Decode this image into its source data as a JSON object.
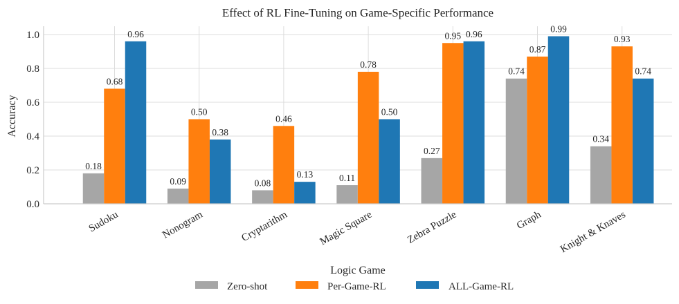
{
  "chart_data": {
    "type": "bar",
    "title": "Effect of RL Fine-Tuning on Game-Specific Performance",
    "xlabel": "",
    "ylabel": "Accuracy",
    "ylim": [
      0,
      1.05
    ],
    "yticks": [
      0.0,
      0.2,
      0.4,
      0.6,
      0.8,
      1.0
    ],
    "ytick_labels": [
      "0.0",
      "0.2",
      "0.4",
      "0.6",
      "0.8",
      "1.0"
    ],
    "grid": true,
    "categories": [
      "Sudoku",
      "Nonogram",
      "Cryptarithm",
      "Magic Square",
      "Zebra Puzzle",
      "Graph",
      "Knight & Knaves"
    ],
    "series": [
      {
        "name": "Zero-shot",
        "color": "#a6a6a6",
        "values": [
          0.18,
          0.09,
          0.08,
          0.11,
          0.27,
          0.74,
          0.34
        ]
      },
      {
        "name": "Per-Game-RL",
        "color": "#ff7f0e",
        "values": [
          0.68,
          0.5,
          0.46,
          0.78,
          0.95,
          0.87,
          0.93
        ]
      },
      {
        "name": "ALL-Game-RL",
        "color": "#1f77b4",
        "values": [
          0.96,
          0.38,
          0.13,
          0.5,
          0.96,
          0.99,
          0.74
        ]
      }
    ],
    "value_labels": true,
    "value_format_decimals": 2,
    "legend": {
      "title": "Logic Game",
      "placement": "bottom-center",
      "entries": [
        "Zero-shot",
        "Per-Game-RL",
        "ALL-Game-RL"
      ]
    }
  }
}
